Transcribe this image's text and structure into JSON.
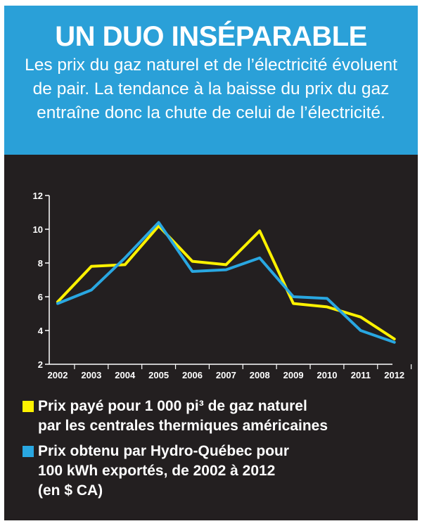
{
  "header": {
    "title": "UN DUO INSÉPARABLE",
    "subtitle": "Les prix du gaz naturel et de l’électricité évoluent de pair. La tendance à la baisse du prix du gaz entraîne donc la chute de celui de l’électricité."
  },
  "colors": {
    "header_bg": "#2aa0d8",
    "panel_bg": "#231f20",
    "gas": "#fff200",
    "electricity": "#29a7e1"
  },
  "chart_data": {
    "type": "line",
    "x": [
      "2002",
      "2003",
      "2004",
      "2005",
      "2006",
      "2007",
      "2008",
      "2009",
      "2010",
      "2011",
      "2012"
    ],
    "ylim": [
      2,
      12
    ],
    "yticks": [
      "2",
      "4",
      "6",
      "8",
      "10",
      "12"
    ],
    "grid": false,
    "series": [
      {
        "name": "Prix payé pour 1 000 pi³ de gaz naturel par les centrales thermiques américaines",
        "color": "#fff200",
        "values": [
          5.7,
          7.8,
          7.9,
          10.2,
          8.1,
          7.9,
          9.9,
          5.6,
          5.4,
          4.8,
          3.5
        ]
      },
      {
        "name": "Prix obtenu par Hydro-Québec pour 100 kWh exportés, de 2002 à 2012 (en $ CA)",
        "color": "#29a7e1",
        "values": [
          5.6,
          6.4,
          8.3,
          10.4,
          7.5,
          7.6,
          8.3,
          6.0,
          5.9,
          4.0,
          3.3
        ]
      }
    ]
  },
  "legend": {
    "items": [
      {
        "label": "Prix payé pour 1 000 pi³ de gaz naturel\npar les centrales thermiques américaines",
        "color": "#fff200"
      },
      {
        "label": "Prix obtenu par Hydro-Québec pour\n100 kWh exportés, de 2002 à 2012\n(en $ CA)",
        "color": "#29a7e1"
      }
    ]
  }
}
